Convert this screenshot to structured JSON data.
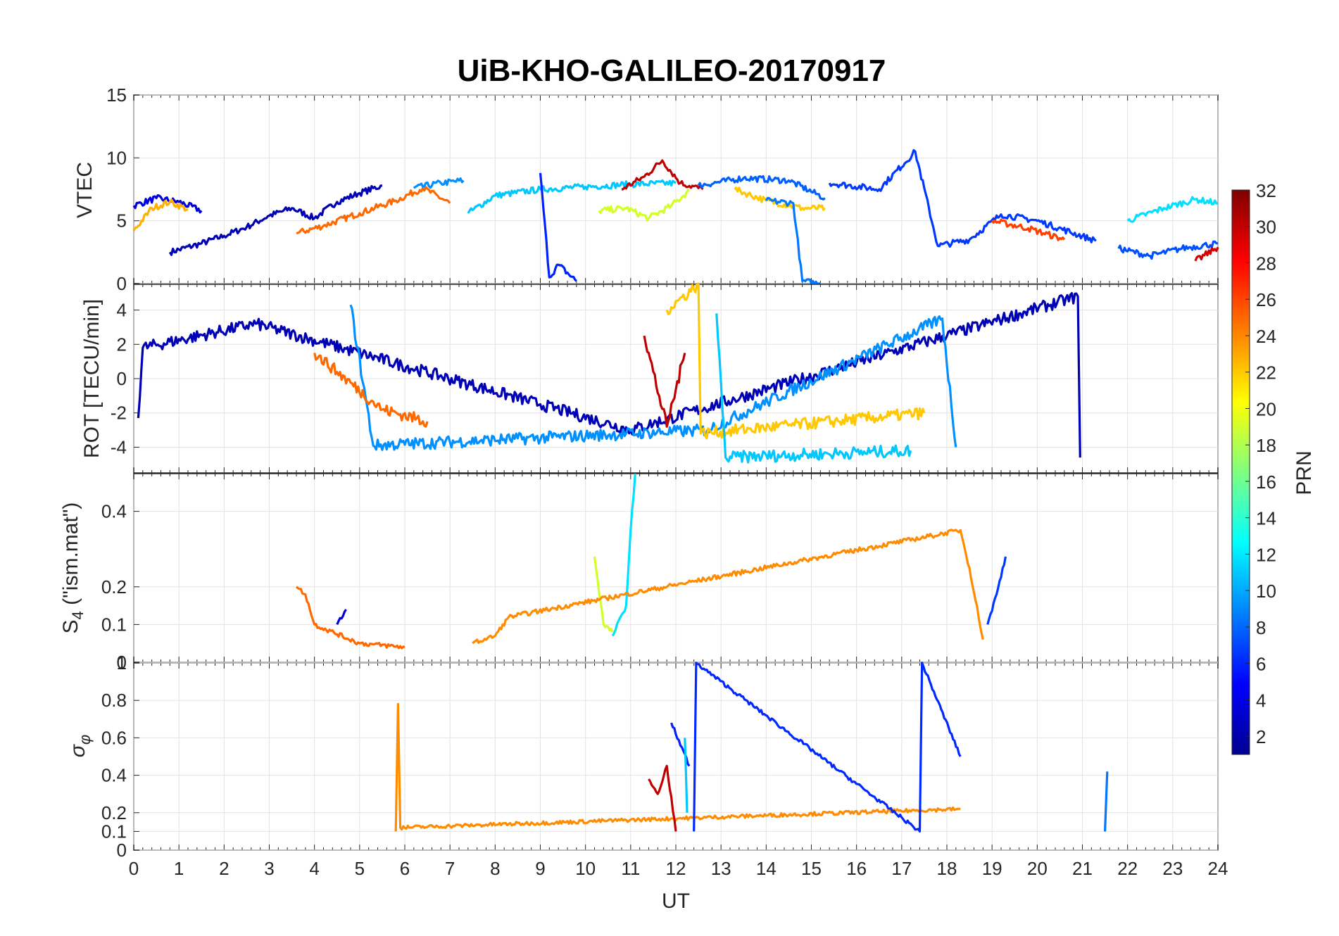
{
  "figure": {
    "title": "UiB-KHO-GALILEO-20170917",
    "xlabel": "UT",
    "x_ticks": [
      "0",
      "1",
      "2",
      "3",
      "4",
      "5",
      "6",
      "7",
      "8",
      "9",
      "10",
      "11",
      "12",
      "13",
      "14",
      "15",
      "16",
      "17",
      "18",
      "19",
      "20",
      "21",
      "22",
      "23",
      "24"
    ]
  },
  "colorbar": {
    "label": "PRN",
    "range": [
      1,
      32
    ],
    "colormap": "jet",
    "tick_labels": [
      "32",
      "30",
      "28",
      "26",
      "24",
      "22",
      "20",
      "18",
      "16",
      "14",
      "12",
      "10",
      "8",
      "6",
      "4",
      "2"
    ]
  },
  "panels": [
    {
      "id": "vtec",
      "ylabel": "VTEC",
      "tick_labels": [
        "15",
        "10",
        "5",
        "0"
      ]
    },
    {
      "id": "rot",
      "ylabel": "ROT [TECU/min]",
      "tick_labels": [
        "4",
        "2",
        "0",
        "-2",
        "-4"
      ]
    },
    {
      "id": "s4",
      "ylabel_main": "S",
      "ylabel_sub": "4",
      "ylabel_rest": " (\"ism.mat\")",
      "tick_labels": [
        "0.4",
        "0.2",
        "0.1",
        "0"
      ]
    },
    {
      "id": "sigma",
      "ylabel_main": "σ",
      "ylabel_sub": "φ",
      "tick_labels": [
        "1",
        "0.8",
        "0.6",
        "0.4",
        "0.2",
        "0.1",
        "0"
      ]
    }
  ],
  "chart_data": [
    {
      "type": "line",
      "title": "UiB-KHO-GALILEO-20170917",
      "xlabel": "UT",
      "ylabel": "VTEC",
      "xlim": [
        0,
        24
      ],
      "ylim": [
        0,
        15
      ],
      "grid": true,
      "series": [
        {
          "prn": 2,
          "color": "#0000b4",
          "x": [
            0.8,
            1.5,
            2.0,
            2.5,
            3.0,
            3.5,
            4.0,
            4.5,
            5.0,
            5.5
          ],
          "y": [
            2.5,
            3.2,
            3.8,
            4.5,
            5.4,
            6.0,
            5.2,
            6.5,
            7.2,
            7.8
          ]
        },
        {
          "prn": 3,
          "color": "#0000dc",
          "x": [
            0.0,
            0.5,
            1.0,
            1.5
          ],
          "y": [
            6.2,
            6.8,
            6.5,
            5.8
          ]
        },
        {
          "prn": 24,
          "color": "#ff6a00",
          "x": [
            3.6,
            4.2,
            5.0,
            5.8,
            6.4,
            7.0
          ],
          "y": [
            4.0,
            4.6,
            5.6,
            6.6,
            7.6,
            6.4
          ]
        },
        {
          "prn": 10,
          "color": "#0090ff",
          "x": [
            6.2,
            6.8,
            7.3
          ],
          "y": [
            7.6,
            8.0,
            8.2
          ]
        },
        {
          "prn": 20,
          "color": "#ffb000",
          "x": [
            0.0,
            0.4,
            0.8,
            1.2
          ],
          "y": [
            4.2,
            6.0,
            6.5,
            5.9
          ]
        },
        {
          "prn": 11,
          "color": "#00c8ff",
          "x": [
            7.4,
            8.0,
            9.0,
            10.0,
            11.0,
            12.0
          ],
          "y": [
            5.6,
            7.0,
            7.5,
            7.7,
            7.9,
            8.0
          ]
        },
        {
          "prn": 4,
          "color": "#0020ff",
          "x": [
            9.0,
            9.2,
            9.4,
            9.8
          ],
          "y": [
            8.8,
            0.5,
            1.5,
            0.2
          ]
        },
        {
          "prn": 30,
          "color": "#be0000",
          "x": [
            10.8,
            11.3,
            11.7,
            12.1,
            12.6
          ],
          "y": [
            7.5,
            8.5,
            9.8,
            8.0,
            7.5
          ]
        },
        {
          "prn": 18,
          "color": "#d2ff28",
          "x": [
            10.3,
            10.9,
            11.4,
            11.9,
            12.3
          ],
          "y": [
            5.8,
            6.0,
            5.2,
            6.2,
            7.4
          ]
        },
        {
          "prn": 8,
          "color": "#0060ff",
          "x": [
            12.5,
            13.5,
            14.5,
            15.3
          ],
          "y": [
            7.8,
            8.4,
            8.2,
            6.8
          ]
        },
        {
          "prn": 21,
          "color": "#ffc800",
          "x": [
            13.3,
            14.0,
            14.8,
            15.3
          ],
          "y": [
            7.5,
            6.6,
            6.0,
            6.0
          ]
        },
        {
          "prn": 9,
          "color": "#0078ff",
          "x": [
            14.0,
            14.6,
            14.8,
            15.2
          ],
          "y": [
            6.6,
            6.4,
            0.2,
            0.0
          ]
        },
        {
          "prn": 5,
          "color": "#0038ff",
          "x": [
            15.4,
            16.5,
            17.3,
            17.8,
            18.5,
            19.2,
            20.0,
            21.3
          ],
          "y": [
            8.0,
            7.5,
            10.5,
            3.0,
            3.5,
            5.5,
            5.0,
            3.4
          ]
        },
        {
          "prn": 26,
          "color": "#ff4000",
          "x": [
            19.0,
            19.8,
            20.6
          ],
          "y": [
            5.0,
            4.4,
            3.5
          ]
        },
        {
          "prn": 12,
          "color": "#00e0ff",
          "x": [
            22.0,
            22.8,
            23.5,
            24.0
          ],
          "y": [
            5.0,
            6.0,
            6.7,
            6.4
          ]
        },
        {
          "prn": 7,
          "color": "#0050ff",
          "x": [
            21.8,
            22.5,
            23.2,
            24.0
          ],
          "y": [
            2.8,
            2.2,
            2.8,
            3.2
          ]
        },
        {
          "prn": 29,
          "color": "#d20000",
          "x": [
            23.5,
            24.0
          ],
          "y": [
            1.8,
            2.9
          ]
        }
      ]
    },
    {
      "type": "line",
      "ylabel": "ROT [TECU/min]",
      "xlim": [
        0,
        24
      ],
      "ylim": [
        -5.5,
        5.5
      ],
      "grid": true,
      "series": [
        {
          "prn": 2,
          "color": "#0000b4",
          "x": [
            0.1,
            0.2,
            2.7,
            9.0,
            11.0,
            20.9,
            20.95
          ],
          "y": [
            -2.3,
            1.8,
            3.2,
            -1.5,
            -3.0,
            4.8,
            -4.6
          ]
        },
        {
          "prn": 10,
          "color": "#0090ff",
          "x": [
            4.8,
            5.3,
            12.7,
            17.9,
            18.2
          ],
          "y": [
            4.3,
            -3.9,
            -3.0,
            3.5,
            -4.0
          ]
        },
        {
          "prn": 24,
          "color": "#ff6a00",
          "x": [
            4.0,
            5.5,
            6.5
          ],
          "y": [
            1.5,
            -1.8,
            -2.5
          ]
        },
        {
          "prn": 30,
          "color": "#be0000",
          "x": [
            11.3,
            11.8,
            12.2
          ],
          "y": [
            2.5,
            -2.8,
            1.5
          ]
        },
        {
          "prn": 21,
          "color": "#ffc800",
          "x": [
            11.8,
            12.5,
            12.55,
            17.5
          ],
          "y": [
            4.0,
            5.5,
            -3.2,
            -2.0
          ]
        },
        {
          "prn": 11,
          "color": "#00c8ff",
          "x": [
            12.9,
            13.1,
            17.2
          ],
          "y": [
            3.8,
            -4.6,
            -4.2
          ]
        }
      ]
    },
    {
      "type": "line",
      "ylabel": "S4 (\"ism.mat\")",
      "xlim": [
        0,
        24
      ],
      "ylim": [
        0,
        0.5
      ],
      "grid": true,
      "series": [
        {
          "prn": 24,
          "color": "#ff6a00",
          "x": [
            3.6,
            3.8,
            4.0,
            5.0,
            6.0
          ],
          "y": [
            0.2,
            0.18,
            0.1,
            0.05,
            0.04
          ]
        },
        {
          "prn": 3,
          "color": "#0000dc",
          "x": [
            4.5,
            4.7
          ],
          "y": [
            0.1,
            0.14
          ]
        },
        {
          "prn": 18,
          "color": "#d2ff28",
          "x": [
            10.2,
            10.4,
            10.6
          ],
          "y": [
            0.28,
            0.1,
            0.08
          ]
        },
        {
          "prn": 12,
          "color": "#00e0ff",
          "x": [
            10.6,
            10.9,
            11.0,
            11.1
          ],
          "y": [
            0.07,
            0.15,
            0.35,
            0.5
          ]
        },
        {
          "prn": 23,
          "color": "#ff8c00",
          "x": [
            7.5,
            8.0,
            8.3,
            18.3,
            18.5,
            18.8
          ],
          "y": [
            0.05,
            0.07,
            0.12,
            0.35,
            0.25,
            0.06
          ]
        },
        {
          "prn": 5,
          "color": "#0038ff",
          "x": [
            18.9,
            19.1,
            19.3
          ],
          "y": [
            0.1,
            0.18,
            0.28
          ]
        }
      ]
    },
    {
      "type": "line",
      "ylabel": "σφ",
      "xlim": [
        0,
        24
      ],
      "ylim": [
        0,
        1
      ],
      "grid": true,
      "series": [
        {
          "prn": 23,
          "color": "#ff8c00",
          "x": [
            5.8,
            5.85,
            5.9,
            18.3
          ],
          "y": [
            0.1,
            0.78,
            0.12,
            0.22
          ]
        },
        {
          "prn": 6,
          "color": "#0028ff",
          "x": [
            12.4,
            12.45,
            17.4,
            17.45,
            18.3
          ],
          "y": [
            0.1,
            1.0,
            0.1,
            1.0,
            0.5
          ]
        },
        {
          "prn": 4,
          "color": "#0020ff",
          "x": [
            11.9,
            12.3
          ],
          "y": [
            0.68,
            0.45
          ]
        },
        {
          "prn": 30,
          "color": "#be0000",
          "x": [
            11.4,
            11.6,
            11.8,
            12.0
          ],
          "y": [
            0.38,
            0.3,
            0.45,
            0.1
          ]
        },
        {
          "prn": 11,
          "color": "#00c8ff",
          "x": [
            12.2,
            12.25
          ],
          "y": [
            0.6,
            0.2
          ]
        },
        {
          "prn": 9,
          "color": "#0078ff",
          "x": [
            21.5,
            21.55
          ],
          "y": [
            0.1,
            0.42
          ]
        }
      ]
    }
  ]
}
